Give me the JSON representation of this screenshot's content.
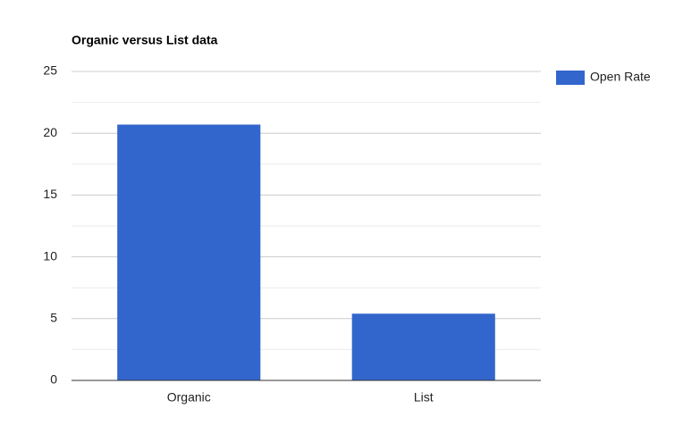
{
  "chart_data": {
    "type": "bar",
    "title": "Organic versus List data",
    "categories": [
      "Organic",
      "List"
    ],
    "series": [
      {
        "name": "Open Rate",
        "color": "#3366cc",
        "values": [
          20.7,
          5.4
        ]
      }
    ],
    "ylim": [
      0,
      25
    ],
    "yticks": [
      0,
      5,
      10,
      15,
      20,
      25
    ],
    "minor_yticks": [
      2.5,
      7.5,
      12.5,
      17.5,
      22.5
    ],
    "grid": true,
    "legend": "right"
  }
}
